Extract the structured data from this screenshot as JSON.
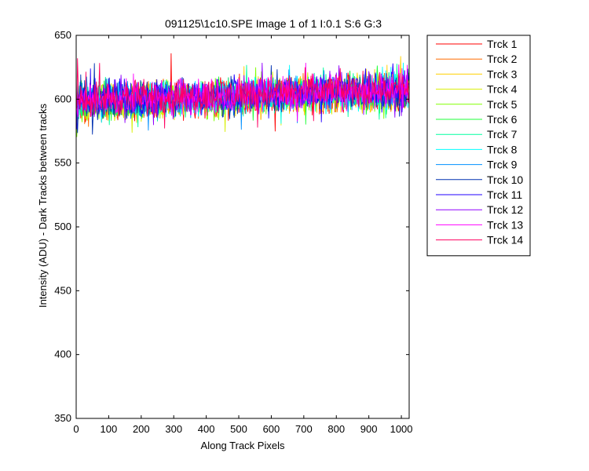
{
  "chart_data": {
    "type": "line",
    "title": "091125\\1c10.SPE  Image 1 of 1  I:0.1  S:6  G:3",
    "xlabel": "Along Track Pixels",
    "ylabel": "Intensity (ADU)  - Dark Tracks between tracks",
    "xlim": [
      0,
      1024
    ],
    "ylim": [
      350,
      650
    ],
    "x_ticks": [
      0,
      100,
      200,
      300,
      400,
      500,
      600,
      700,
      800,
      900,
      1000
    ],
    "y_ticks": [
      350,
      400,
      450,
      500,
      550,
      600,
      650
    ],
    "grid": false,
    "legend_position": "outside-right",
    "x_range": [
      0,
      1023
    ],
    "trend": {
      "start": 598,
      "end": 607,
      "noise_amplitude": 9
    },
    "series": [
      {
        "name": "Trck 1",
        "color": "#ff0000"
      },
      {
        "name": "Trck 2",
        "color": "#ff6a00"
      },
      {
        "name": "Trck 3",
        "color": "#ffd000"
      },
      {
        "name": "Trck 4",
        "color": "#d8ef00"
      },
      {
        "name": "Trck 5",
        "color": "#80ff00"
      },
      {
        "name": "Trck 6",
        "color": "#1fff3a"
      },
      {
        "name": "Trck 7",
        "color": "#00ffa0"
      },
      {
        "name": "Trck 8",
        "color": "#00ffff"
      },
      {
        "name": "Trck 9",
        "color": "#0090ff"
      },
      {
        "name": "Trck 10",
        "color": "#0030b0"
      },
      {
        "name": "Trck 11",
        "color": "#2200ff"
      },
      {
        "name": "Trck 12",
        "color": "#9000ff"
      },
      {
        "name": "Trck 13",
        "color": "#ff00ff"
      },
      {
        "name": "Trck 14",
        "color": "#ff0060"
      }
    ]
  }
}
